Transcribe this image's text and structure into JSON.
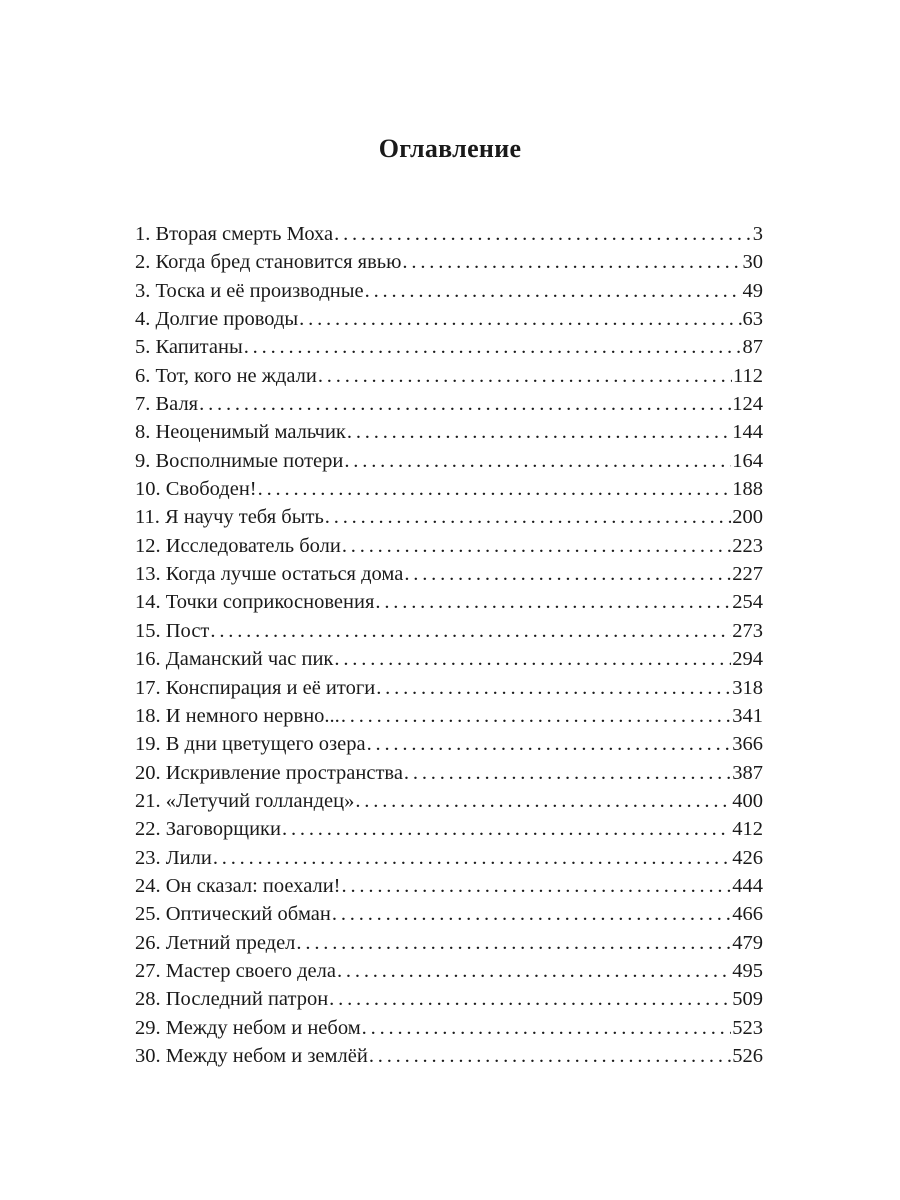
{
  "title": "Оглавление",
  "entries": [
    {
      "label": "1. Вторая смерть Моха",
      "page": "3"
    },
    {
      "label": "2. Когда бред становится явью",
      "page": "30"
    },
    {
      "label": "3. Тоска и её производные",
      "page": "49"
    },
    {
      "label": "4. Долгие проводы",
      "page": "63"
    },
    {
      "label": "5. Капитаны",
      "page": "87"
    },
    {
      "label": "6. Тот, кого не ждали",
      "page": "112"
    },
    {
      "label": "7. Валя",
      "page": "124"
    },
    {
      "label": "8. Неоценимый мальчик",
      "page": "144"
    },
    {
      "label": "9. Восполнимые потери",
      "page": "164"
    },
    {
      "label": "10. Свободен!",
      "page": "188"
    },
    {
      "label": "11. Я научу тебя быть",
      "page": "200"
    },
    {
      "label": "12. Исследователь боли",
      "page": "223"
    },
    {
      "label": "13. Когда лучше остаться дома",
      "page": "227"
    },
    {
      "label": "14. Точки соприкосновения",
      "page": "254"
    },
    {
      "label": "15. Пост",
      "page": "273"
    },
    {
      "label": "16. Даманский час пик",
      "page": "294"
    },
    {
      "label": "17. Конспирация и её итоги",
      "page": "318"
    },
    {
      "label": "18. И немного нервно...",
      "page": "341"
    },
    {
      "label": "19. В дни цветущего озера",
      "page": "366"
    },
    {
      "label": "20. Искривление пространства",
      "page": "387"
    },
    {
      "label": "21. «Летучий голландец»",
      "page": "400"
    },
    {
      "label": "22. Заговорщики",
      "page": "412"
    },
    {
      "label": "23. Лили",
      "page": "426"
    },
    {
      "label": "24. Он сказал: поехали!",
      "page": "444"
    },
    {
      "label": "25. Оптический обман",
      "page": "466"
    },
    {
      "label": "26. Летний предел",
      "page": "479"
    },
    {
      "label": "27. Мастер своего дела",
      "page": "495"
    },
    {
      "label": "28. Последний патрон",
      "page": "509"
    },
    {
      "label": "29. Между небом и небом",
      "page": "523"
    },
    {
      "label": "30. Между небом и землёй",
      "page": "526"
    }
  ]
}
